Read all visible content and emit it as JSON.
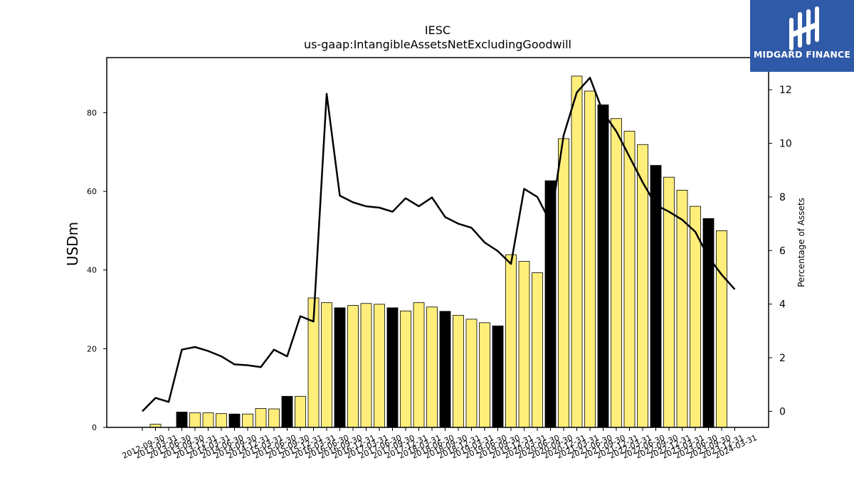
{
  "brand": {
    "name": "MIDGARD FINANCE",
    "bg_color": "#2f5aa8"
  },
  "chart_data": {
    "type": "bar",
    "title": "IESC",
    "subtitle": "us-gaap:IntangibleAssetsNetExcludingGoodwill",
    "ylabel": "USDm",
    "y2label": "Percentage of Assets",
    "ylim": [
      0,
      94
    ],
    "y2lim": [
      -0.6,
      13.2
    ],
    "yticks": [
      0,
      20,
      40,
      60,
      80
    ],
    "y2ticks": [
      0,
      2,
      4,
      6,
      8,
      10,
      12
    ],
    "grid": false,
    "colors": {
      "quarter": "#ffee7a",
      "fiscal_year_end": "#000000",
      "line": "#000000"
    },
    "categories": [
      "2012-09-30",
      "2013-03-31",
      "2013-06-30",
      "2013-09-30",
      "2013-12-31",
      "2014-03-31",
      "2014-06-30",
      "2014-09-30",
      "2014-12-31",
      "2015-03-31",
      "2015-06-30",
      "2015-09-30",
      "2015-12-31",
      "2016-03-31",
      "2016-06-30",
      "2016-09-30",
      "2016-12-31",
      "2017-03-31",
      "2017-06-30",
      "2017-09-30",
      "2017-12-31",
      "2018-03-31",
      "2018-06-30",
      "2018-09-30",
      "2018-12-31",
      "2019-03-31",
      "2019-06-30",
      "2019-09-30",
      "2019-12-31",
      "2020-03-31",
      "2020-06-30",
      "2020-09-30",
      "2020-12-31",
      "2021-03-31",
      "2021-06-30",
      "2021-09-30",
      "2021-12-31",
      "2022-03-31",
      "2022-06-30",
      "2022-09-30",
      "2022-12-31",
      "2023-03-31",
      "2023-06-30",
      "2023-09-30",
      "2023-12-31",
      "2024-03-31"
    ],
    "series": [
      {
        "kind": "bar",
        "values": [
          0,
          0.8,
          0,
          3.9,
          3.7,
          3.7,
          3.5,
          3.4,
          3.4,
          4.8,
          4.7,
          7.9,
          7.9,
          32.9,
          31.7,
          30.4,
          31.0,
          31.5,
          31.3,
          30.4,
          29.6,
          31.7,
          30.6,
          29.5,
          28.5,
          27.5,
          26.6,
          25.8,
          43.9,
          42.2,
          39.3,
          62.7,
          73.4,
          89.3,
          85.5,
          82.0,
          78.5,
          75.3,
          71.9,
          66.6,
          63.6,
          60.3,
          56.2,
          53.1,
          50.0,
          0
        ],
        "fiscal_year_end": [
          true,
          false,
          false,
          true,
          false,
          false,
          false,
          true,
          false,
          false,
          false,
          true,
          false,
          false,
          false,
          true,
          false,
          false,
          false,
          true,
          false,
          false,
          false,
          true,
          false,
          false,
          false,
          true,
          false,
          false,
          false,
          true,
          false,
          false,
          false,
          true,
          false,
          false,
          false,
          true,
          false,
          false,
          false,
          true,
          false,
          false
        ]
      },
      {
        "kind": "line",
        "axis": "y2",
        "values": [
          0.0,
          0.5,
          0.35,
          2.3,
          2.4,
          2.25,
          2.05,
          1.75,
          1.72,
          1.65,
          2.3,
          2.05,
          3.55,
          3.35,
          11.85,
          8.05,
          7.8,
          7.65,
          7.6,
          7.45,
          7.95,
          7.65,
          7.98,
          7.25,
          7.0,
          6.85,
          6.3,
          5.98,
          5.5,
          8.3,
          8.0,
          7.05,
          10.3,
          11.9,
          12.45,
          11.15,
          10.45,
          9.5,
          8.55,
          7.7,
          7.45,
          7.15,
          6.7,
          5.75,
          5.1,
          4.55
        ]
      }
    ]
  }
}
